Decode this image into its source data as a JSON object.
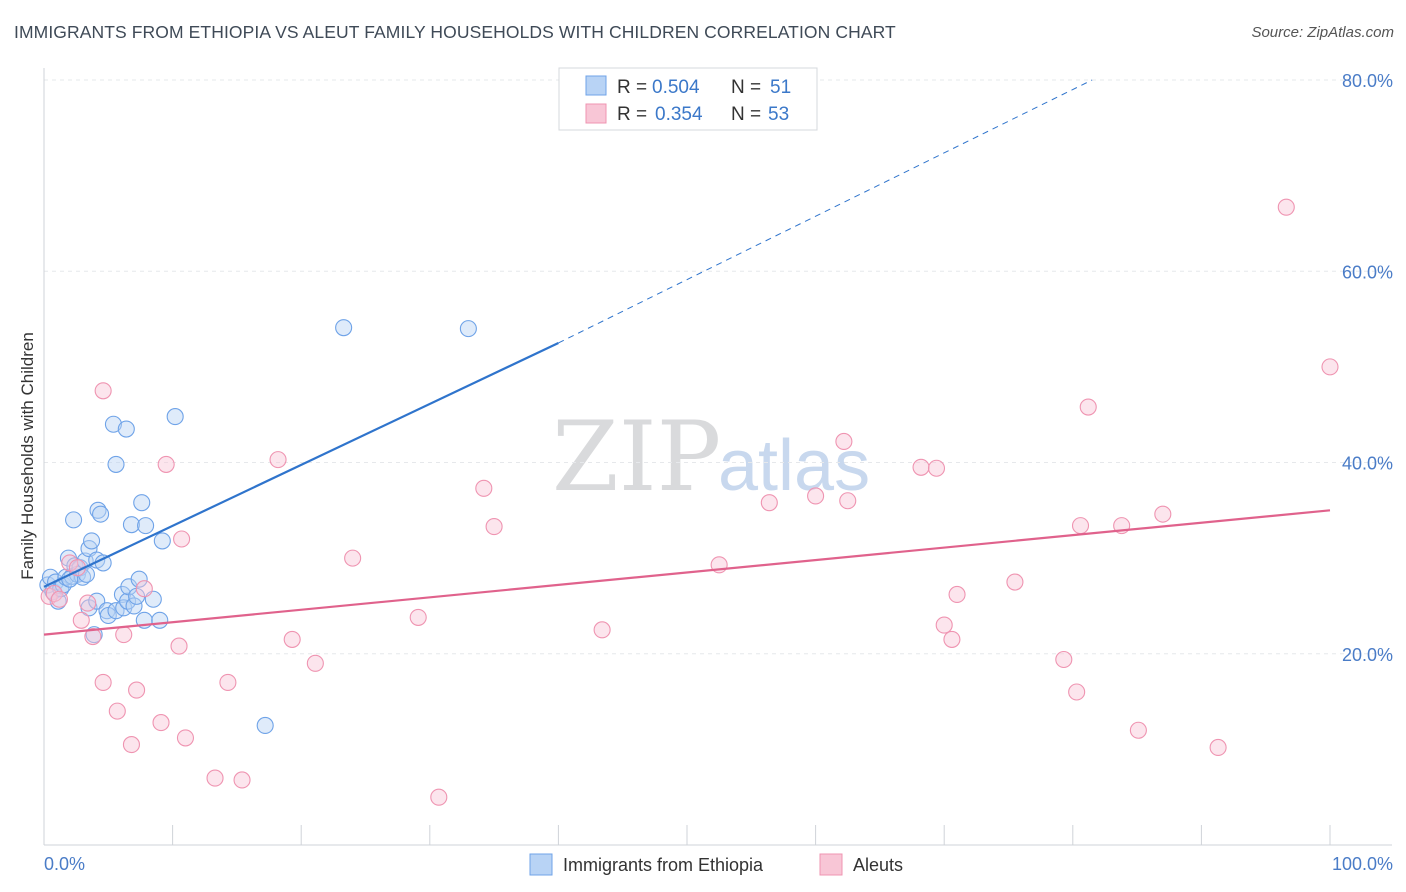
{
  "chart_data": {
    "type": "scatter",
    "title": "IMMIGRANTS FROM ETHIOPIA VS ALEUT FAMILY HOUSEHOLDS WITH CHILDREN CORRELATION CHART",
    "source": "Source: ZipAtlas.com",
    "xlabel": "",
    "ylabel": "Family Households with Children",
    "xlim": [
      0,
      100
    ],
    "ylim": [
      0,
      80
    ],
    "x_tick_labels": {
      "min": "0.0%",
      "max": "100.0%"
    },
    "y_ticks": [
      {
        "value": 20,
        "label": "20.0%"
      },
      {
        "value": 40,
        "label": "40.0%"
      },
      {
        "value": 60,
        "label": "60.0%"
      },
      {
        "value": 80,
        "label": "80.0%"
      }
    ],
    "watermark": {
      "zip": "ZIP",
      "atlas": "atlas"
    },
    "stats": [
      {
        "r_label": "R =",
        "r_value": "0.504",
        "n_label": "N =",
        "n_value": "51"
      },
      {
        "r_label": "R =",
        "r_value": "0.354",
        "n_label": "N =",
        "n_value": "53"
      }
    ],
    "series": [
      {
        "name": "Immigrants from Ethiopia",
        "color": "#6fa3e8",
        "fill": "#b8d3f5",
        "line_color": "#2f74cc",
        "trend": {
          "x0": 0,
          "y0": 27.0,
          "x1": 40,
          "y1": 52.5,
          "dash_x1": 81.5,
          "dash_y1": 80.0
        },
        "points": [
          {
            "x": 0.3,
            "y": 27.2
          },
          {
            "x": 0.5,
            "y": 28.0
          },
          {
            "x": 0.7,
            "y": 26.5
          },
          {
            "x": 0.9,
            "y": 27.5
          },
          {
            "x": 1.1,
            "y": 25.5
          },
          {
            "x": 1.3,
            "y": 26.8
          },
          {
            "x": 1.5,
            "y": 27.2
          },
          {
            "x": 1.7,
            "y": 28.0
          },
          {
            "x": 1.9,
            "y": 30.0
          },
          {
            "x": 2.2,
            "y": 28.1
          },
          {
            "x": 2.4,
            "y": 29.2
          },
          {
            "x": 2.6,
            "y": 28.3
          },
          {
            "x": 2.3,
            "y": 34.0
          },
          {
            "x": 2.8,
            "y": 29.0
          },
          {
            "x": 3.0,
            "y": 28.0
          },
          {
            "x": 3.2,
            "y": 29.7
          },
          {
            "x": 3.3,
            "y": 28.3
          },
          {
            "x": 3.5,
            "y": 31.0
          },
          {
            "x": 3.5,
            "y": 24.8
          },
          {
            "x": 3.7,
            "y": 31.8
          },
          {
            "x": 3.9,
            "y": 22.0
          },
          {
            "x": 4.1,
            "y": 29.8
          },
          {
            "x": 4.1,
            "y": 25.5
          },
          {
            "x": 4.2,
            "y": 35.0
          },
          {
            "x": 4.4,
            "y": 34.6
          },
          {
            "x": 4.6,
            "y": 29.5
          },
          {
            "x": 4.9,
            "y": 24.5
          },
          {
            "x": 5.0,
            "y": 24.0
          },
          {
            "x": 5.4,
            "y": 44.0
          },
          {
            "x": 5.6,
            "y": 39.8
          },
          {
            "x": 5.6,
            "y": 24.5
          },
          {
            "x": 6.1,
            "y": 26.2
          },
          {
            "x": 6.2,
            "y": 24.8
          },
          {
            "x": 6.4,
            "y": 43.5
          },
          {
            "x": 6.5,
            "y": 25.5
          },
          {
            "x": 6.6,
            "y": 27.0
          },
          {
            "x": 6.8,
            "y": 33.5
          },
          {
            "x": 7.0,
            "y": 25.0
          },
          {
            "x": 7.2,
            "y": 26.0
          },
          {
            "x": 7.4,
            "y": 27.8
          },
          {
            "x": 7.6,
            "y": 35.8
          },
          {
            "x": 7.8,
            "y": 23.5
          },
          {
            "x": 7.9,
            "y": 33.4
          },
          {
            "x": 8.5,
            "y": 25.7
          },
          {
            "x": 9.0,
            "y": 23.5
          },
          {
            "x": 9.2,
            "y": 31.8
          },
          {
            "x": 10.2,
            "y": 44.8
          },
          {
            "x": 17.2,
            "y": 12.5
          },
          {
            "x": 23.3,
            "y": 54.1
          },
          {
            "x": 33.0,
            "y": 54.0
          },
          {
            "x": 2.0,
            "y": 27.8
          }
        ]
      },
      {
        "name": "Aleuts",
        "color": "#ef94b1",
        "fill": "#f8c6d6",
        "line_color": "#e0628c",
        "trend": {
          "x0": 0,
          "y0": 22.0,
          "x1": 100,
          "y1": 35.0
        },
        "points": [
          {
            "x": 0.4,
            "y": 26.0
          },
          {
            "x": 0.8,
            "y": 26.3
          },
          {
            "x": 1.2,
            "y": 25.7
          },
          {
            "x": 2.0,
            "y": 29.5
          },
          {
            "x": 2.6,
            "y": 29.0
          },
          {
            "x": 2.9,
            "y": 23.5
          },
          {
            "x": 3.4,
            "y": 25.3
          },
          {
            "x": 3.8,
            "y": 21.8
          },
          {
            "x": 4.6,
            "y": 17.0
          },
          {
            "x": 4.6,
            "y": 47.5
          },
          {
            "x": 5.7,
            "y": 14.0
          },
          {
            "x": 6.2,
            "y": 22.0
          },
          {
            "x": 6.8,
            "y": 10.5
          },
          {
            "x": 7.2,
            "y": 16.2
          },
          {
            "x": 7.8,
            "y": 26.8
          },
          {
            "x": 9.1,
            "y": 12.8
          },
          {
            "x": 9.5,
            "y": 39.8
          },
          {
            "x": 10.5,
            "y": 20.8
          },
          {
            "x": 10.7,
            "y": 32.0
          },
          {
            "x": 11.0,
            "y": 11.2
          },
          {
            "x": 13.3,
            "y": 7.0
          },
          {
            "x": 14.3,
            "y": 17.0
          },
          {
            "x": 15.4,
            "y": 6.8
          },
          {
            "x": 18.2,
            "y": 40.3
          },
          {
            "x": 19.3,
            "y": 21.5
          },
          {
            "x": 21.1,
            "y": 19.0
          },
          {
            "x": 24.0,
            "y": 30.0
          },
          {
            "x": 29.1,
            "y": 23.8
          },
          {
            "x": 30.7,
            "y": 5.0
          },
          {
            "x": 34.2,
            "y": 37.3
          },
          {
            "x": 35.0,
            "y": 33.3
          },
          {
            "x": 43.4,
            "y": 22.5
          },
          {
            "x": 52.5,
            "y": 29.3
          },
          {
            "x": 56.4,
            "y": 35.8
          },
          {
            "x": 60.0,
            "y": 36.5
          },
          {
            "x": 62.2,
            "y": 42.2
          },
          {
            "x": 62.5,
            "y": 36.0
          },
          {
            "x": 68.2,
            "y": 39.5
          },
          {
            "x": 69.4,
            "y": 39.4
          },
          {
            "x": 70.0,
            "y": 23.0
          },
          {
            "x": 70.6,
            "y": 21.5
          },
          {
            "x": 71.0,
            "y": 26.2
          },
          {
            "x": 75.5,
            "y": 27.5
          },
          {
            "x": 79.3,
            "y": 19.4
          },
          {
            "x": 80.3,
            "y": 16.0
          },
          {
            "x": 80.6,
            "y": 33.4
          },
          {
            "x": 81.2,
            "y": 45.8
          },
          {
            "x": 83.8,
            "y": 33.4
          },
          {
            "x": 85.1,
            "y": 12.0
          },
          {
            "x": 87.0,
            "y": 34.6
          },
          {
            "x": 91.3,
            "y": 10.2
          },
          {
            "x": 96.6,
            "y": 66.7
          },
          {
            "x": 100.0,
            "y": 50.0
          }
        ]
      }
    ],
    "legend": {
      "position": "bottom-center"
    }
  }
}
